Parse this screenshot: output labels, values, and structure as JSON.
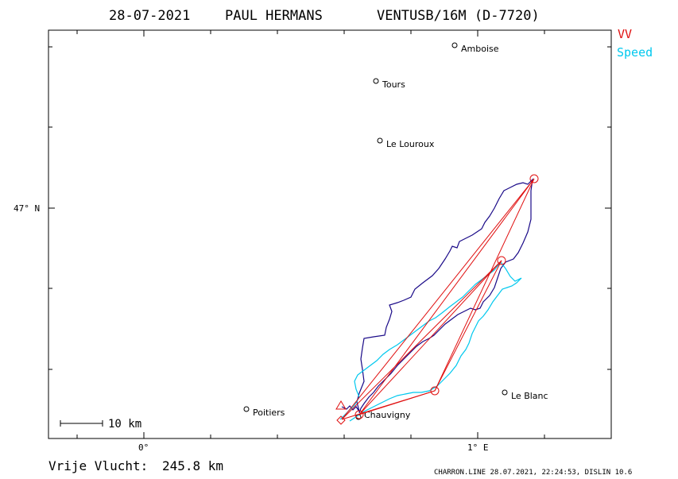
{
  "header": {
    "date": "28-07-2021",
    "pilot": "PAUL HERMANS",
    "glider": "VENTUSB/16M (D-7720)"
  },
  "legend": {
    "vv": "VV",
    "speed": "Speed"
  },
  "axes": {
    "x_ticks": [
      {
        "label": "0°",
        "lon": 0
      },
      {
        "label": "1° E",
        "lon": 1
      }
    ],
    "y_ticks": [
      {
        "label": "47° N",
        "lat": 47
      }
    ]
  },
  "cities": [
    {
      "name": "Amboise",
      "lon": 0.93,
      "lat": 47.41
    },
    {
      "name": "Tours",
      "lon": 0.7,
      "lat": 47.32
    },
    {
      "name": "Le Louroux",
      "lon": 0.71,
      "lat": 47.17
    },
    {
      "name": "Poitiers",
      "lon": 0.31,
      "lat": 46.49
    },
    {
      "name": "Chauvigny",
      "lon": 0.65,
      "lat": 46.47
    },
    {
      "name": "Le Blanc",
      "lon": 1.08,
      "lat": 46.54
    }
  ],
  "scale_bar": {
    "label": "10 km"
  },
  "distance": {
    "label": "Vrije Vlucht:",
    "value": "245.8 km"
  },
  "footer": {
    "text": "CHARRON.LINE 28.07.2021, 22:24:53, DISLIN 10.6"
  },
  "colors": {
    "track": "#1a0a88",
    "speed": "#00c8ee",
    "vv": "#e01010",
    "frame": "#000000"
  }
}
